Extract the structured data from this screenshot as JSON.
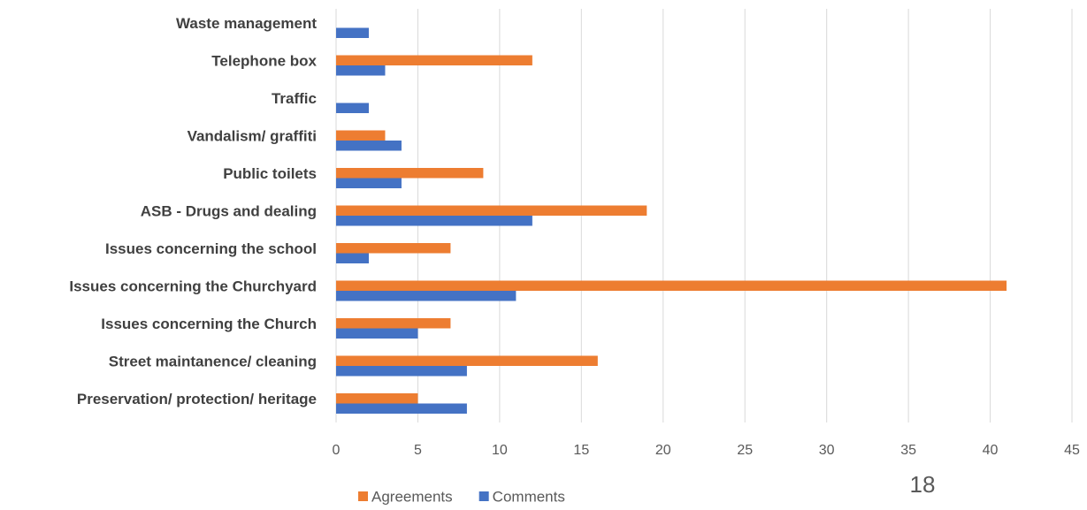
{
  "chart_data": {
    "type": "bar",
    "orientation": "horizontal",
    "categories": [
      "Waste management",
      "Telephone box",
      "Traffic",
      "Vandalism/ graffiti",
      "Public toilets",
      "ASB - Drugs and dealing",
      "Issues concerning the school",
      "Issues concerning the Churchyard",
      "Issues concerning the Church",
      "Street maintanence/ cleaning",
      "Preservation/ protection/ heritage"
    ],
    "series": [
      {
        "name": "Agreements",
        "color": "#ed7d31",
        "values": [
          0,
          12,
          0,
          3,
          9,
          19,
          7,
          41,
          7,
          16,
          5
        ]
      },
      {
        "name": "Comments",
        "color": "#4472c4",
        "values": [
          2,
          3,
          2,
          4,
          4,
          12,
          2,
          11,
          5,
          8,
          8
        ]
      }
    ],
    "xlim": [
      0,
      45
    ],
    "xticks": [
      0,
      5,
      10,
      15,
      20,
      25,
      30,
      35,
      40,
      45
    ],
    "grid": true,
    "legend": "bottom"
  },
  "page_number": "18"
}
